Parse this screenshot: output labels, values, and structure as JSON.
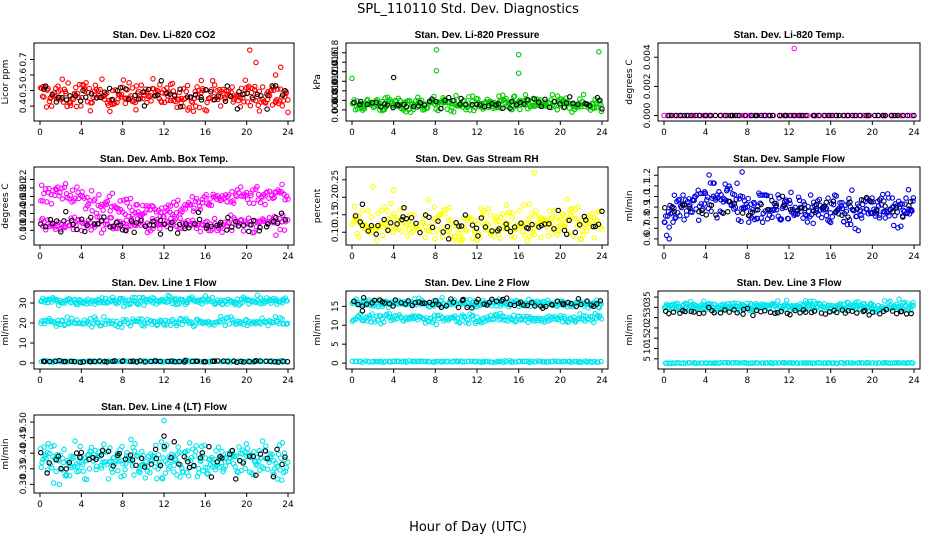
{
  "figure": {
    "title": "SPL_110110  Std. Dev. Diagnostics",
    "xlabel": "Hour of Day (UTC)"
  },
  "chart_data": [
    {
      "type": "scatter",
      "title": "Stan. Dev. Li-820 CO2",
      "ylabel": "Licor ppm",
      "xlim": [
        0,
        24
      ],
      "ylim": [
        0.33,
        0.78
      ],
      "xticks": [
        "0",
        "4",
        "8",
        "12",
        "16",
        "20",
        "24"
      ],
      "yticks": [
        "0.4",
        "0.5",
        "0.6",
        "0.7"
      ],
      "ytick_values": [
        0.4,
        0.5,
        0.6,
        0.7
      ],
      "series": [
        {
          "color": "#ff0000",
          "bands": [
            {
              "center": 0.47,
              "spread": 0.045,
              "count": 260
            }
          ],
          "outliers": [
            [
              20.3,
              0.76
            ],
            [
              23.3,
              0.65
            ],
            [
              20.9,
              0.68
            ],
            [
              22.8,
              0.6
            ],
            [
              24,
              0.36
            ]
          ]
        },
        {
          "color": "#000000",
          "bands": [
            {
              "center": 0.47,
              "spread": 0.035,
              "count": 60
            }
          ],
          "outliers": []
        }
      ]
    },
    {
      "type": "scatter",
      "title": "Stan. Dev. Li-820 Pressure",
      "ylabel": "kPa",
      "xlim": [
        0,
        24
      ],
      "ylim": [
        0.0045,
        0.0192
      ],
      "xticks": [
        "0",
        "4",
        "8",
        "12",
        "16",
        "20",
        "24"
      ],
      "yticks": [
        "0.006",
        "0.008",
        "0.010",
        "0.012",
        "0.014",
        "0.016",
        "0.018"
      ],
      "ytick_values": [
        0.006,
        0.008,
        0.01,
        0.012,
        0.014,
        0.016,
        0.018
      ],
      "series": [
        {
          "color": "#00cc00",
          "bands": [
            {
              "center": 0.0072,
              "spread": 0.0008,
              "count": 280
            }
          ],
          "outliers": [
            [
              8.1,
              0.0186
            ],
            [
              8.1,
              0.0142
            ],
            [
              16,
              0.0176
            ],
            [
              16,
              0.0137
            ],
            [
              23.7,
              0.0182
            ],
            [
              0,
              0.0126
            ]
          ]
        },
        {
          "color": "#000000",
          "bands": [
            {
              "center": 0.0074,
              "spread": 0.0006,
              "count": 60
            }
          ],
          "outliers": [
            [
              4,
              0.0128
            ],
            [
              24,
              0.0062
            ]
          ]
        }
      ]
    },
    {
      "type": "scatter",
      "title": "Stan. Dev. Li-820 Temp.",
      "ylabel": "degrees C",
      "xlim": [
        0,
        24
      ],
      "ylim": [
        -0.0001,
        0.0047
      ],
      "xticks": [
        "0",
        "4",
        "8",
        "12",
        "16",
        "20",
        "24"
      ],
      "yticks": [
        "0.000",
        "0.002",
        "0.004"
      ],
      "ytick_values": [
        0,
        0.002,
        0.004
      ],
      "series": [
        {
          "color": "#ff00ff",
          "bands": [
            {
              "center": 0.0,
              "spread": 0.0,
              "count": 60
            }
          ],
          "outliers": [
            [
              12.5,
              0.0046
            ]
          ]
        },
        {
          "color": "#000000",
          "bands": [
            {
              "center": 0.0,
              "spread": 0.0,
              "count": 60
            }
          ],
          "outliers": []
        }
      ]
    },
    {
      "type": "scatter",
      "title": "Stan. Dev. Amb. Box Temp.",
      "ylabel": "degrees C",
      "xlim": [
        0,
        24
      ],
      "ylim": [
        0.075,
        0.24
      ],
      "xticks": [
        "0",
        "4",
        "8",
        "12",
        "16",
        "20",
        "24"
      ],
      "yticks": [
        "0.10",
        "0.12",
        "0.14",
        "0.16",
        "0.18",
        "0.20",
        "0.22"
      ],
      "ytick_values": [
        0.1,
        0.12,
        0.14,
        0.16,
        0.18,
        0.2,
        0.22
      ],
      "series": [
        {
          "color": "#ff00ff",
          "bands": [
            {
              "center": 0.185,
              "spread": 0.012,
              "count": 200,
              "trend": "dip"
            },
            {
              "center": 0.115,
              "spread": 0.01,
              "count": 180
            }
          ],
          "outliers": []
        },
        {
          "color": "#000000",
          "bands": [
            {
              "center": 0.115,
              "spread": 0.01,
              "count": 70
            }
          ],
          "outliers": []
        }
      ]
    },
    {
      "type": "scatter",
      "title": "Stan. Dev. Gas Stream RH",
      "ylabel": "percent",
      "xlim": [
        0,
        24
      ],
      "ylim": [
        0.075,
        0.275
      ],
      "xticks": [
        "0",
        "4",
        "8",
        "12",
        "16",
        "20",
        "24"
      ],
      "yticks": [
        "0.10",
        "0.15",
        "0.20",
        "0.25"
      ],
      "ytick_values": [
        0.1,
        0.15,
        0.2,
        0.25
      ],
      "series": [
        {
          "color": "#ffff00",
          "bands": [
            {
              "center": 0.12,
              "spread": 0.03,
              "count": 300
            }
          ],
          "outliers": [
            [
              17.5,
              0.27
            ],
            [
              2,
              0.23
            ],
            [
              4,
              0.22
            ]
          ]
        },
        {
          "color": "#000000",
          "bands": [
            {
              "center": 0.12,
              "spread": 0.015,
              "count": 60
            }
          ],
          "outliers": [
            [
              1,
              0.18
            ],
            [
              5,
              0.17
            ],
            [
              24,
              0.16
            ]
          ]
        }
      ]
    },
    {
      "type": "scatter",
      "title": "Stan. Dev. Sample Flow",
      "ylabel": "ml/min",
      "xlim": [
        0,
        24
      ],
      "ylim": [
        0.58,
        1.24
      ],
      "xticks": [
        "0",
        "4",
        "8",
        "12",
        "16",
        "20",
        "24"
      ],
      "yticks": [
        "0.6",
        "0.7",
        "0.8",
        "0.9",
        "1.0",
        "1.1",
        "1.2"
      ],
      "ytick_values": [
        0.6,
        0.7,
        0.8,
        0.9,
        1.0,
        1.1,
        1.2
      ],
      "series": [
        {
          "color": "#0000dd",
          "bands": [
            {
              "center": 0.88,
              "spread": 0.08,
              "count": 320,
              "trend": "hump"
            }
          ],
          "outliers": [
            [
              7.5,
              1.23
            ],
            [
              0.5,
              0.6
            ]
          ]
        },
        {
          "color": "#000000",
          "bands": [
            {
              "center": 0.9,
              "spread": 0.05,
              "count": 50
            }
          ],
          "outliers": []
        }
      ]
    },
    {
      "type": "scatter",
      "title": "Stan. Dev. Line 1 Flow",
      "ylabel": "ml/min",
      "xlim": [
        0,
        24
      ],
      "ylim": [
        -1,
        34
      ],
      "xticks": [
        "0",
        "4",
        "8",
        "12",
        "16",
        "20",
        "24"
      ],
      "yticks": [
        "0",
        "10",
        "20",
        "30"
      ],
      "ytick_values": [
        0,
        10,
        20,
        30
      ],
      "series": [
        {
          "color": "#00e5ee",
          "bands": [
            {
              "center": 31,
              "spread": 1.0,
              "count": 220
            },
            {
              "center": 20.5,
              "spread": 1.2,
              "count": 180
            },
            {
              "center": 0.8,
              "spread": 0.2,
              "count": 120
            }
          ],
          "outliers": []
        },
        {
          "color": "#000000",
          "bands": [
            {
              "center": 0.8,
              "spread": 0.2,
              "count": 60
            }
          ],
          "outliers": []
        }
      ]
    },
    {
      "type": "scatter",
      "title": "Stan. Dev. Line 2 Flow",
      "ylabel": "ml/min",
      "xlim": [
        0,
        24
      ],
      "ylim": [
        -0.5,
        18
      ],
      "xticks": [
        "0",
        "4",
        "8",
        "12",
        "16",
        "20",
        "24"
      ],
      "yticks": [
        "0",
        "5",
        "10",
        "15"
      ],
      "ytick_values": [
        0,
        5,
        10,
        15
      ],
      "series": [
        {
          "color": "#00e5ee",
          "bands": [
            {
              "center": 15.8,
              "spread": 0.5,
              "count": 220
            },
            {
              "center": 11.8,
              "spread": 0.6,
              "count": 200
            },
            {
              "center": 0.4,
              "spread": 0.1,
              "count": 120
            }
          ],
          "outliers": []
        },
        {
          "color": "#000000",
          "bands": [
            {
              "center": 15.8,
              "spread": 0.6,
              "count": 70
            }
          ],
          "outliers": [
            [
              1,
              13.8
            ]
          ]
        }
      ]
    },
    {
      "type": "scatter",
      "title": "Stan. Dev. Line 3 Flow",
      "ylabel": "ml/min",
      "xlim": [
        0,
        24
      ],
      "ylim": [
        2,
        36
      ],
      "xticks": [
        "0",
        "4",
        "8",
        "12",
        "16",
        "20",
        "24"
      ],
      "yticks": [
        "5",
        "10",
        "15",
        "20",
        "25",
        "30",
        "35"
      ],
      "ytick_values": [
        5,
        10,
        15,
        20,
        25,
        30,
        35
      ],
      "series": [
        {
          "color": "#00e5ee",
          "bands": [
            {
              "center": 30.5,
              "spread": 1.2,
              "count": 300
            },
            {
              "center": 3,
              "spread": 0.1,
              "count": 120
            }
          ],
          "outliers": []
        },
        {
          "color": "#000000",
          "bands": [
            {
              "center": 27.5,
              "spread": 0.8,
              "count": 60
            }
          ],
          "outliers": []
        }
      ]
    },
    {
      "type": "scatter",
      "title": "Stan. Dev. Line 4 (LT) Flow",
      "ylabel": "ml/min",
      "xlim": [
        0,
        24
      ],
      "ylim": [
        0.285,
        0.51
      ],
      "xticks": [
        "0",
        "4",
        "8",
        "12",
        "16",
        "20",
        "24"
      ],
      "yticks": [
        "0.30",
        "0.35",
        "0.40",
        "0.45",
        "0.50"
      ],
      "ytick_values": [
        0.3,
        0.35,
        0.4,
        0.45,
        0.5
      ],
      "series": [
        {
          "color": "#00e5ee",
          "bands": [
            {
              "center": 0.375,
              "spread": 0.03,
              "count": 300
            }
          ],
          "outliers": [
            [
              12,
              0.505
            ]
          ]
        },
        {
          "color": "#000000",
          "bands": [
            {
              "center": 0.38,
              "spread": 0.025,
              "count": 60
            }
          ],
          "outliers": [
            [
              12,
              0.455
            ]
          ]
        }
      ]
    }
  ]
}
